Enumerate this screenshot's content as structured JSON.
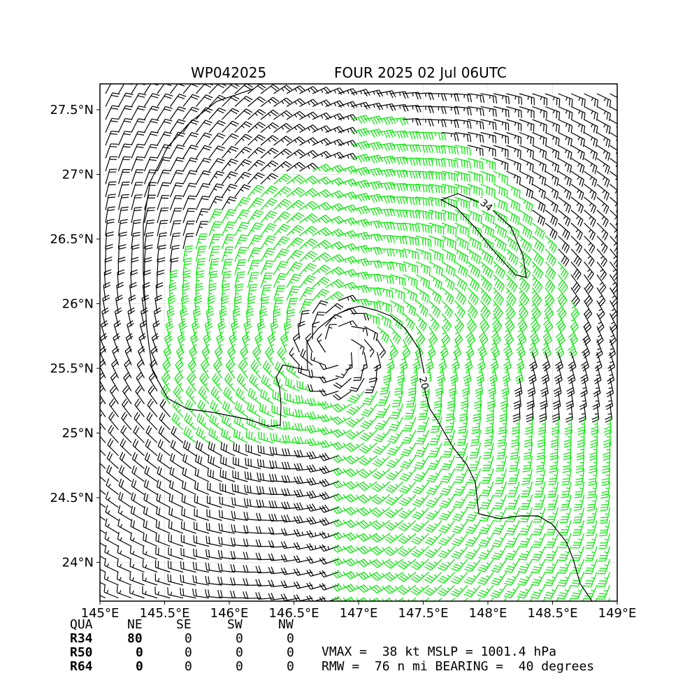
{
  "header": {
    "storm_id": "WP042025",
    "storm_info": "FOUR 2025 02 Jul 06UTC"
  },
  "chart_data": {
    "type": "wind_barb_map",
    "x_ticks": [
      "145°E",
      "145.5°E",
      "146°E",
      "146.5°E",
      "147°E",
      "147.5°E",
      "148°E",
      "148.5°E",
      "149°E"
    ],
    "y_ticks": [
      "27.5°N",
      "27°N",
      "26.5°N",
      "26°N",
      "25.5°N",
      "25°N",
      "24.5°N",
      "24°N"
    ],
    "lon_range": [
      145.0,
      149.0
    ],
    "lat_range": [
      23.7,
      27.7
    ],
    "center": {
      "lon": 146.85,
      "lat": 25.65
    },
    "contour_labels": [
      "34",
      "20"
    ],
    "colors": {
      "below_34kt": "#000000",
      "gale_34kt": "#00e600",
      "strong_gale": "#f5b91e"
    },
    "grid": true
  },
  "wind_radii_table": {
    "header": [
      "QUA",
      "NE",
      "SE",
      "SW",
      "NW"
    ],
    "rows": [
      {
        "label": "R34",
        "values": [
          "80",
          "0",
          "0",
          "0"
        ]
      },
      {
        "label": "R50",
        "values": [
          "0",
          "0",
          "0",
          "0"
        ]
      },
      {
        "label": "R64",
        "values": [
          "0",
          "0",
          "0",
          "0"
        ]
      }
    ]
  },
  "summary": {
    "line1": "VMAX =  38 kt MSLP = 1001.4 hPa",
    "line2": "RMW =  76 n mi BEARING =  40 degrees"
  }
}
